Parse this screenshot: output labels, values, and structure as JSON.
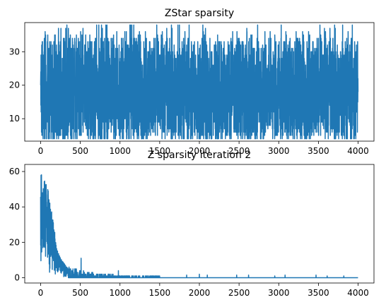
{
  "chart_data": [
    {
      "type": "line",
      "title": "ZStar sparsity",
      "xlabel": "",
      "ylabel": "",
      "xlim": [
        -200,
        4200
      ],
      "ylim": [
        3.3,
        38.7
      ],
      "xticks": [
        0,
        500,
        1000,
        1500,
        2000,
        2500,
        3000,
        3500,
        4000
      ],
      "yticks": [
        10,
        20,
        30
      ],
      "grid": false,
      "color": "#1f77b4",
      "series": [
        {
          "num_points": 4000,
          "x_range": [
            0,
            3999
          ],
          "approx_mean": 18,
          "typical_band": [
            7,
            30
          ],
          "min": 4,
          "max": 38,
          "peaks": [
            {
              "x": 20,
              "y": 33
            },
            {
              "x": 90,
              "y": 35
            },
            {
              "x": 250,
              "y": 33
            },
            {
              "x": 620,
              "y": 35
            },
            {
              "x": 700,
              "y": 34
            },
            {
              "x": 1080,
              "y": 36
            },
            {
              "x": 1230,
              "y": 35
            },
            {
              "x": 1520,
              "y": 35
            },
            {
              "x": 1730,
              "y": 38
            },
            {
              "x": 2050,
              "y": 36
            },
            {
              "x": 2230,
              "y": 35
            },
            {
              "x": 2600,
              "y": 36
            },
            {
              "x": 2950,
              "y": 35
            },
            {
              "x": 3230,
              "y": 34
            },
            {
              "x": 3390,
              "y": 35
            },
            {
              "x": 3800,
              "y": 33
            }
          ]
        }
      ]
    },
    {
      "type": "line",
      "title": "Z sparsity iteration 2",
      "xlabel": "",
      "ylabel": "",
      "xlim": [
        -200,
        4200
      ],
      "ylim": [
        -3,
        64
      ],
      "xticks": [
        0,
        500,
        1000,
        1500,
        2000,
        2500,
        3000,
        3500,
        4000
      ],
      "yticks": [
        0,
        20,
        40,
        60
      ],
      "grid": false,
      "color": "#1f77b4",
      "series": [
        {
          "num_points": 4000,
          "x_range": [
            0,
            3999
          ],
          "envelope": [
            {
              "x": 0,
              "y": 61
            },
            {
              "x": 30,
              "y": 55
            },
            {
              "x": 70,
              "y": 55
            },
            {
              "x": 100,
              "y": 48
            },
            {
              "x": 130,
              "y": 42
            },
            {
              "x": 160,
              "y": 33
            },
            {
              "x": 200,
              "y": 17
            },
            {
              "x": 250,
              "y": 11
            },
            {
              "x": 300,
              "y": 8
            },
            {
              "x": 350,
              "y": 5
            },
            {
              "x": 400,
              "y": 4
            },
            {
              "x": 500,
              "y": 3
            },
            {
              "x": 700,
              "y": 2
            },
            {
              "x": 1000,
              "y": 1
            },
            {
              "x": 1500,
              "y": 1
            },
            {
              "x": 4000,
              "y": 0
            }
          ],
          "spikes": [
            {
              "x": 510,
              "y": 11
            },
            {
              "x": 980,
              "y": 4
            },
            {
              "x": 1840,
              "y": 1.5
            },
            {
              "x": 2000,
              "y": 2
            },
            {
              "x": 2100,
              "y": 1.5
            },
            {
              "x": 2470,
              "y": 1.5
            },
            {
              "x": 2620,
              "y": 1.5
            },
            {
              "x": 2950,
              "y": 1
            },
            {
              "x": 3080,
              "y": 1.5
            },
            {
              "x": 3470,
              "y": 1.5
            },
            {
              "x": 3610,
              "y": 1
            },
            {
              "x": 3820,
              "y": 1
            }
          ]
        }
      ]
    }
  ]
}
